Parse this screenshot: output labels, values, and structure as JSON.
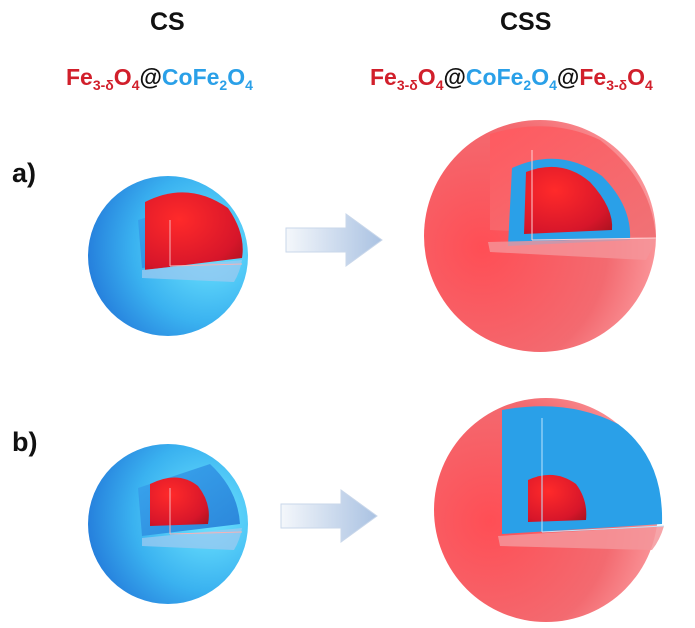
{
  "headers": {
    "cs": "CS",
    "css": "CSS"
  },
  "formulas": {
    "cs": [
      {
        "t": "Fe",
        "c": "red"
      },
      {
        "t": "3-δ",
        "c": "red",
        "sub": true
      },
      {
        "t": "O",
        "c": "red"
      },
      {
        "t": "4",
        "c": "red",
        "sub": true
      },
      {
        "t": "@",
        "c": "black"
      },
      {
        "t": "CoFe",
        "c": "blue"
      },
      {
        "t": "2",
        "c": "blue",
        "sub": true
      },
      {
        "t": "O",
        "c": "blue"
      },
      {
        "t": "4",
        "c": "blue",
        "sub": true
      }
    ],
    "css": [
      {
        "t": "Fe",
        "c": "red"
      },
      {
        "t": "3-δ",
        "c": "red",
        "sub": true
      },
      {
        "t": "O",
        "c": "red"
      },
      {
        "t": "4",
        "c": "red",
        "sub": true
      },
      {
        "t": "@",
        "c": "black"
      },
      {
        "t": "CoFe",
        "c": "blue"
      },
      {
        "t": "2",
        "c": "blue",
        "sub": true
      },
      {
        "t": "O",
        "c": "blue"
      },
      {
        "t": "4",
        "c": "blue",
        "sub": true
      },
      {
        "t": "@",
        "c": "black"
      },
      {
        "t": "Fe",
        "c": "red"
      },
      {
        "t": "3-δ",
        "c": "red",
        "sub": true
      },
      {
        "t": "O",
        "c": "red"
      },
      {
        "t": "4",
        "c": "red",
        "sub": true
      }
    ]
  },
  "rows": {
    "a": "a)",
    "b": "b)"
  },
  "colors": {
    "core": "#d11f2b",
    "shell_blue": "#2aa0e8",
    "shell_red": "#f2545b",
    "arrow": "#b9cde6"
  }
}
